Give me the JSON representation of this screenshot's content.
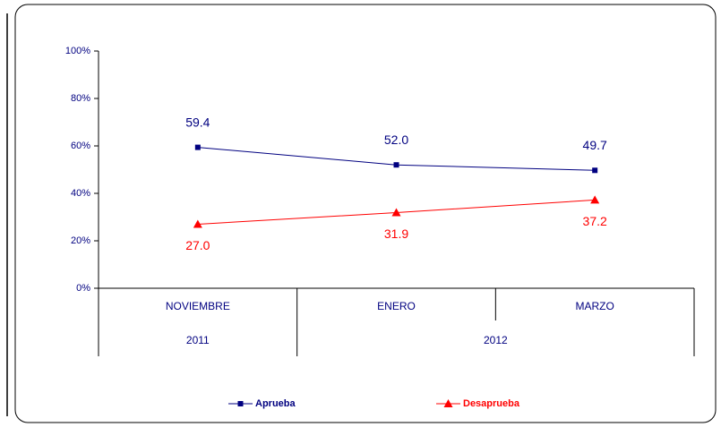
{
  "chart_data": {
    "type": "line",
    "categories": [
      "NOVIEMBRE",
      "ENERO",
      "MARZO"
    ],
    "x_groups": [
      {
        "label": "2011",
        "members": [
          "NOVIEMBRE"
        ]
      },
      {
        "label": "2012",
        "members": [
          "ENERO",
          "MARZO"
        ]
      }
    ],
    "series": [
      {
        "name": "Aprueba",
        "color": "#000080",
        "marker": "square",
        "label_position": "above",
        "values": [
          59.4,
          52.0,
          49.7
        ],
        "value_labels": [
          "59.4",
          "52.0",
          "49.7"
        ]
      },
      {
        "name": "Desaprueba",
        "color": "#ff0000",
        "marker": "triangle",
        "label_position": "below",
        "values": [
          27.0,
          31.9,
          37.2
        ],
        "value_labels": [
          "27.0",
          "31.9",
          "37.2"
        ]
      }
    ],
    "ylim": [
      0,
      100
    ],
    "yticks": [
      {
        "value": 0,
        "label": "0%"
      },
      {
        "value": 20,
        "label": "20%"
      },
      {
        "value": 40,
        "label": "40%"
      },
      {
        "value": 60,
        "label": "60%"
      },
      {
        "value": 80,
        "label": "80%"
      },
      {
        "value": 100,
        "label": "100%"
      }
    ],
    "grid": false,
    "legend": "bottom"
  }
}
